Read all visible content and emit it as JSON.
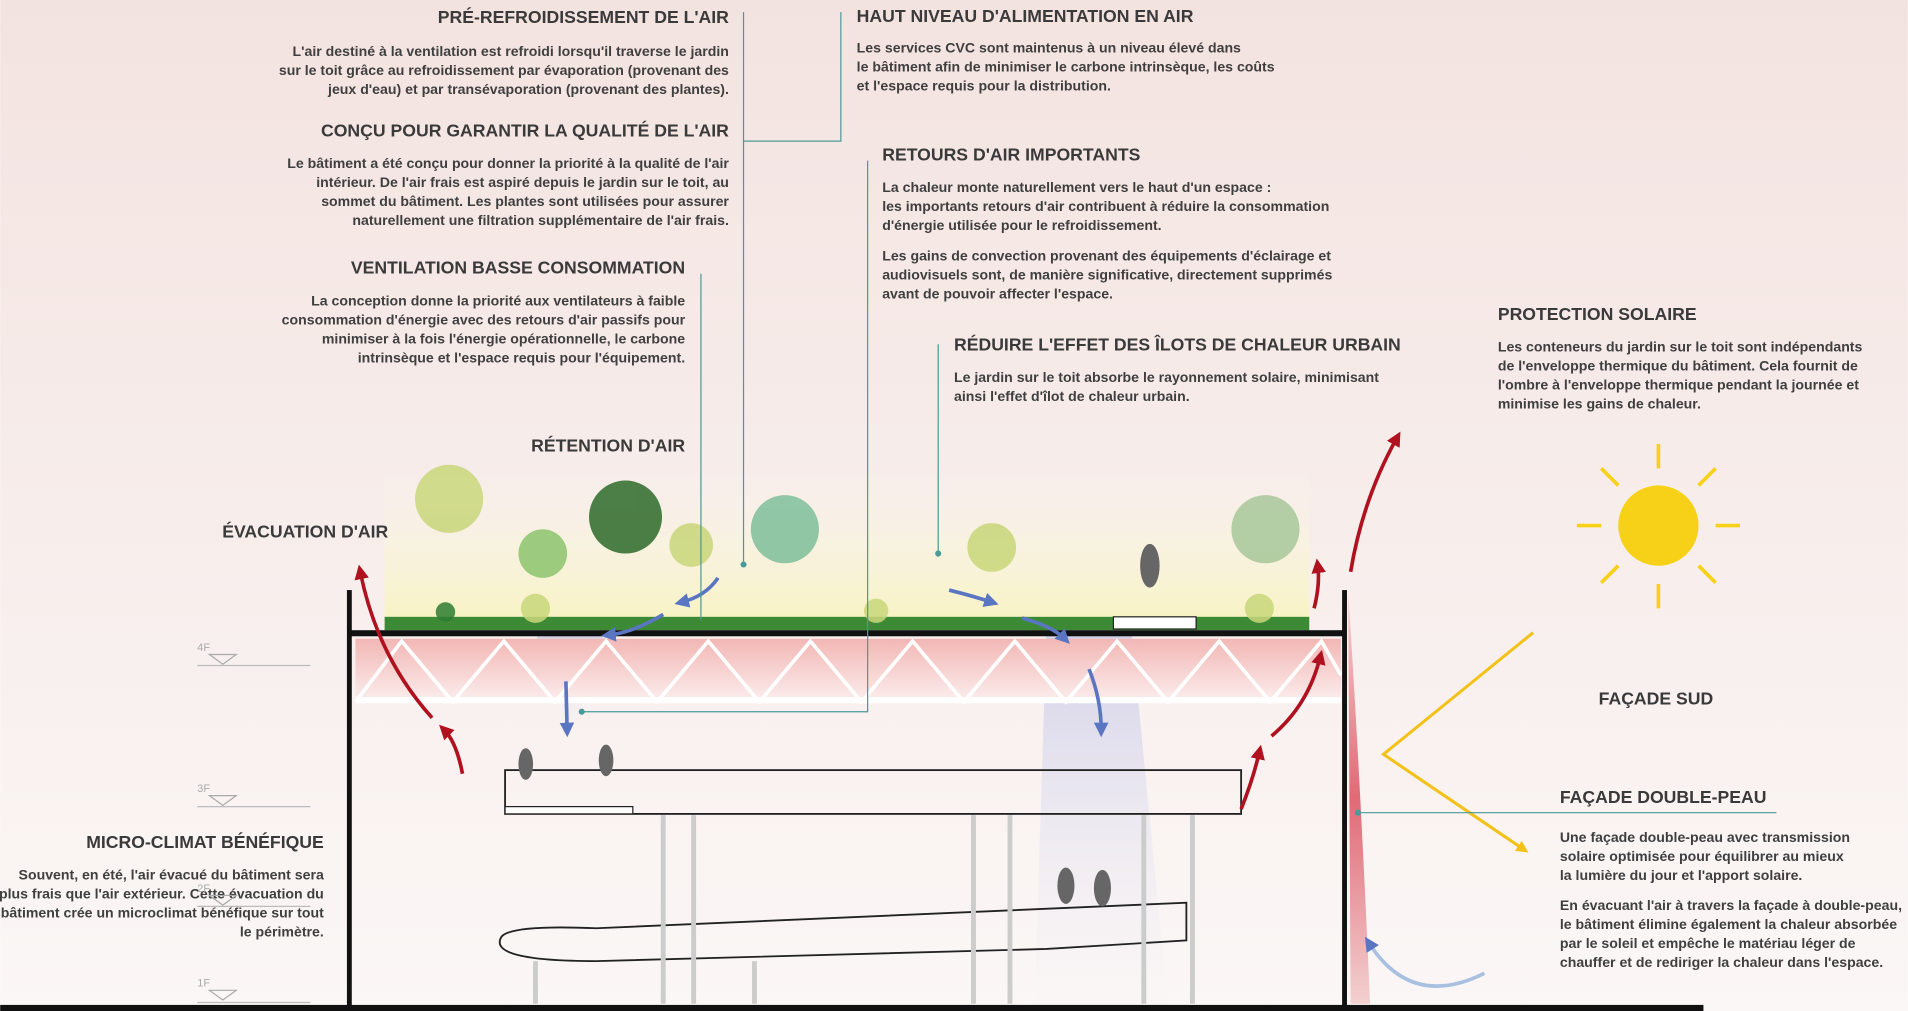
{
  "sections": [
    {
      "title": "PRÉ-REFROIDISSEMENT DE L'AIR",
      "paragraphs": [
        [
          "L'air destiné à la ventilation est refroidi lorsqu'il traverse le jardin",
          "sur le toit grâce au refroidissement par évaporation (provenant des",
          "jeux d'eau) et par transévaporation (provenant des plantes)."
        ]
      ]
    },
    {
      "title": "CONÇU POUR GARANTIR LA QUALITÉ DE L'AIR",
      "paragraphs": [
        [
          "Le bâtiment a été conçu pour donner la priorité à la qualité de l'air",
          "intérieur. De l'air frais est aspiré depuis le jardin sur le toit, au",
          "sommet du bâtiment. Les plantes sont utilisées pour assurer",
          "naturellement une filtration supplémentaire de l'air frais."
        ]
      ]
    },
    {
      "title": "VENTILATION BASSE CONSOMMATION",
      "paragraphs": [
        [
          "La conception donne la priorité aux ventilateurs à faible",
          "consommation d'énergie avec des retours d'air passifs pour",
          "minimiser à la fois l'énergie opérationnelle, le carbone",
          "intrinsèque et l'espace requis pour l'équipement."
        ]
      ]
    },
    {
      "title": "MICRO-CLIMAT BÉNÉFIQUE",
      "paragraphs": [
        [
          "Souvent, en été, l'air évacué du bâtiment sera",
          "plus frais que l'air extérieur. Cette évacuation du",
          "bâtiment crée un microclimat bénéfique sur tout",
          "le périmètre."
        ]
      ]
    },
    {
      "title": "HAUT NIVEAU D'ALIMENTATION EN AIR",
      "paragraphs": [
        [
          "Les services CVC sont maintenus à un niveau élevé dans",
          "le bâtiment afin de minimiser le carbone intrinsèque, les coûts",
          "et l'espace requis pour la distribution."
        ]
      ]
    },
    {
      "title": "RETOURS D'AIR IMPORTANTS",
      "paragraphs": [
        [
          "La chaleur monte naturellement vers le haut d'un espace :",
          "les importants retours d'air contribuent à réduire la consommation",
          "d'énergie utilisée pour le refroidissement."
        ],
        [
          "Les gains de convection provenant des équipements d'éclairage et",
          "audiovisuels sont, de manière significative, directement supprimés",
          "avant de pouvoir affecter l'espace."
        ]
      ]
    },
    {
      "title": "RÉDUIRE L'EFFET DES ÎLOTS DE CHALEUR URBAIN",
      "paragraphs": [
        [
          "Le jardin sur le toit absorbe le rayonnement solaire, minimisant",
          "ainsi l'effet d'îlot de chaleur urbain."
        ]
      ]
    },
    {
      "title": "PROTECTION SOLAIRE",
      "paragraphs": [
        [
          "Les conteneurs du jardin sur le toit sont indépendants",
          "de l'enveloppe thermique du bâtiment. Cela fournit de",
          "l'ombre à l'enveloppe thermique pendant la journée et",
          "minimise les gains de chaleur."
        ]
      ]
    },
    {
      "title": "FAÇADE DOUBLE-PEAU",
      "paragraphs": [
        [
          "Une façade double-peau avec transmission",
          "solaire optimisée pour équilibrer au mieux",
          "la lumière du jour et l'apport solaire."
        ],
        [
          "En évacuant l'air à travers la façade à double-peau,",
          "le bâtiment élimine également la chaleur absorbée",
          "par le soleil et empêche le matériau léger de",
          "chauffer et de rediriger la chaleur dans l'espace."
        ]
      ]
    }
  ],
  "labels": {
    "retention": "RÉTENTION D'AIR",
    "evacuation": "ÉVACUATION D'AIR",
    "facade_sud": "FAÇADE SUD"
  },
  "levels": [
    "4F",
    "3F",
    "2F",
    "1F"
  ]
}
